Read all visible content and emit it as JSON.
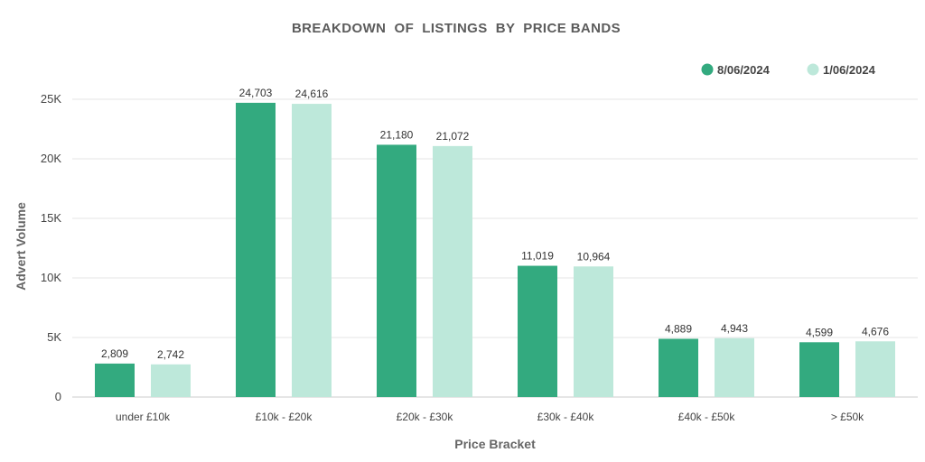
{
  "chart_data": {
    "type": "bar",
    "title": "BREAKDOWN  OF  LISTINGS  BY  PRICE BANDS",
    "xlabel": "Price Bracket",
    "ylabel": "Advert Volume",
    "categories": [
      "under £10k",
      "£10k - £20k",
      "£20k - £30k",
      "£30k - £40k",
      "£40k - £50k",
      "> £50k"
    ],
    "series": [
      {
        "name": "8/06/2024",
        "color": "#33aa7f",
        "values": [
          2809,
          24703,
          21180,
          11019,
          4889,
          4599
        ],
        "labels": [
          "2,809",
          "24,703",
          "21,180",
          "11,019",
          "4,889",
          "4,599"
        ]
      },
      {
        "name": "1/06/2024",
        "color": "#bde8da",
        "values": [
          2742,
          24616,
          21072,
          10964,
          4943,
          4676
        ],
        "labels": [
          "2,742",
          "24,616",
          "21,072",
          "10,964",
          "4,943",
          "4,676"
        ]
      }
    ],
    "ylim": [
      0,
      25000
    ],
    "yticks": [
      0,
      5000,
      10000,
      15000,
      20000,
      25000
    ],
    "ytick_labels": [
      "0",
      "5K",
      "10K",
      "15K",
      "20K",
      "25K"
    ],
    "grid": true,
    "legend": "top-right"
  }
}
